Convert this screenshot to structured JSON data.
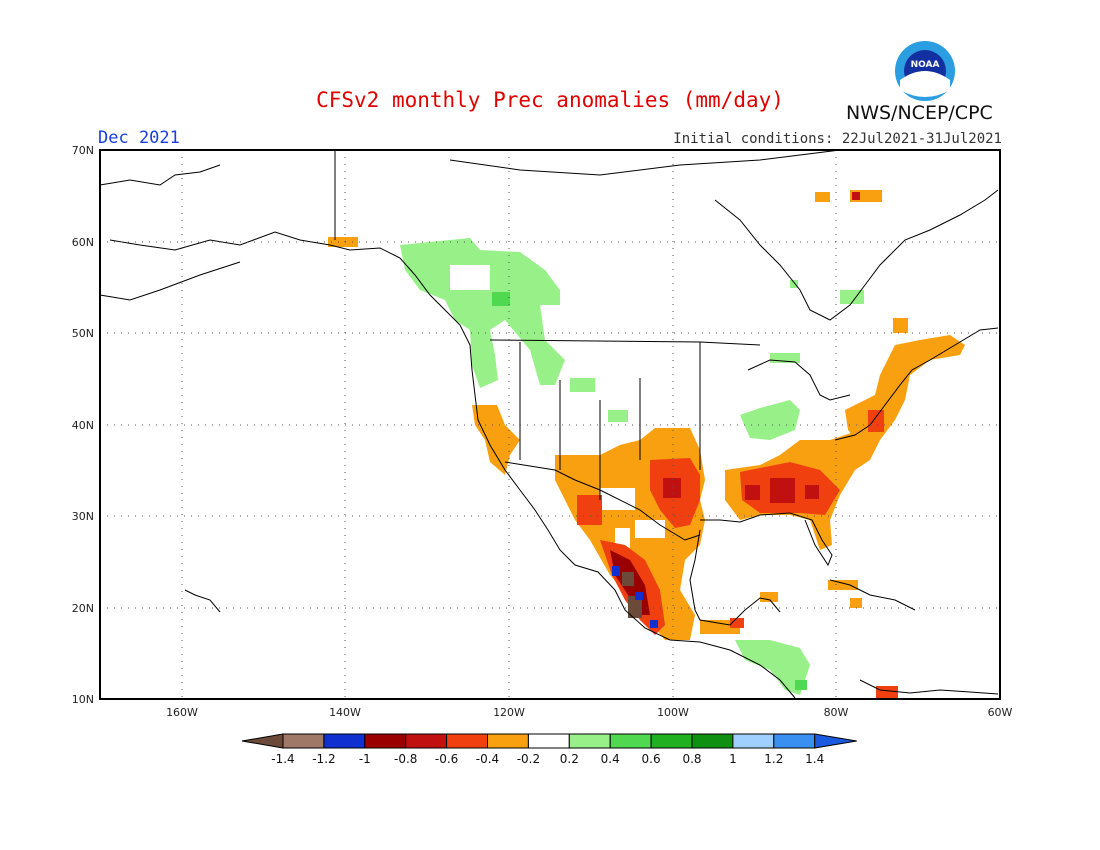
{
  "header": {
    "title": "CFSv2 monthly Prec anomalies (mm/day)",
    "month": "Dec 2021",
    "initial_conditions": "Initial conditions: 22Jul2021-31Jul2021",
    "agency": "NWS/NCEP/CPC",
    "logo_text": "NOAA"
  },
  "map": {
    "projection": "lat-lon",
    "lon_range": [
      -170,
      -60
    ],
    "lat_range": [
      10,
      70
    ],
    "lat_labels": [
      "70N",
      "60N",
      "50N",
      "40N",
      "30N",
      "20N",
      "10N"
    ],
    "lon_labels": [
      "160W",
      "140W",
      "120W",
      "100W",
      "80W",
      "60W"
    ],
    "grid": "dotted"
  },
  "colorbar": {
    "labels": [
      "-1.4",
      "-1.2",
      "-1",
      "-0.8",
      "-0.6",
      "-0.4",
      "-0.2",
      "0.2",
      "0.4",
      "0.6",
      "0.8",
      "1",
      "1.2",
      "1.4"
    ],
    "colors": [
      "#6b4a3a",
      "#a07868",
      "#1030d0",
      "#9a0000",
      "#c01010",
      "#f04010",
      "#f8a010",
      "#ffffff",
      "#98f088",
      "#50d850",
      "#20b020",
      "#109010",
      "#a0d0ff",
      "#3a90f0",
      "#1a5ae0"
    ]
  },
  "anomaly_regions": [
    {
      "name": "Alaska SE coast",
      "category": "-0.4 to -0.2",
      "color": "#f8a010"
    },
    {
      "name": "British Columbia / Pacific NW interior",
      "category": "0.2 to 0.4",
      "color": "#98f088"
    },
    {
      "name": "California coast",
      "category": "-0.4 to -0.2",
      "color": "#f8a010"
    },
    {
      "name": "US Southwest and northern Mexico",
      "category": "-0.4 to -0.2",
      "color": "#f8a010"
    },
    {
      "name": "Texas / southern Plains",
      "category": "-0.6 to -0.4",
      "color": "#f04010"
    },
    {
      "name": "US Southeast (Gulf states)",
      "category": "-0.6 to -0.4",
      "color": "#f04010"
    },
    {
      "name": "Mid-Atlantic and New England coast",
      "category": "-0.4 to -0.2",
      "color": "#f8a010"
    },
    {
      "name": "Ohio Valley / Great Lakes",
      "category": "0.2 to 0.4",
      "color": "#98f088"
    },
    {
      "name": "West Mexico Pacific coast",
      "category": "below -1.2",
      "color": "#6b4a3a"
    },
    {
      "name": "Central America",
      "category": "0.2 to 0.4",
      "color": "#98f088"
    },
    {
      "name": "Caribbean / Cuba",
      "category": "-0.4 to -0.2",
      "color": "#f8a010"
    }
  ]
}
